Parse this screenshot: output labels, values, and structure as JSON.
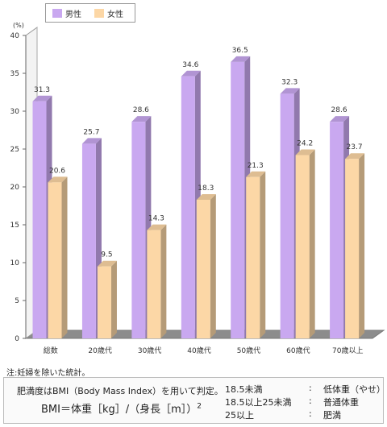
{
  "chart_data": {
    "type": "bar",
    "categories": [
      "総数",
      "20歳代",
      "30歳代",
      "40歳代",
      "50歳代",
      "60歳代",
      "70歳以上"
    ],
    "series": [
      {
        "name": "男性",
        "values": [
          31.3,
          25.7,
          28.6,
          34.6,
          36.5,
          32.3,
          28.6
        ],
        "color": "#c9a8f0"
      },
      {
        "name": "女性",
        "values": [
          20.6,
          9.5,
          14.3,
          18.3,
          21.3,
          24.2,
          23.7
        ],
        "color": "#fcd7a6"
      }
    ],
    "ylim": [
      0,
      40
    ],
    "yticks": [
      0,
      5,
      10,
      15,
      20,
      25,
      30,
      35,
      40
    ],
    "unit_label": "(%)",
    "grid": false,
    "legend_position": "top-left"
  },
  "note": "注:妊婦を除いた統計。",
  "bmi_info": {
    "description": "肥満度はBMI（Body Mass Index）を用いて判定。",
    "formula": "BMI＝体重［kg］/（身長［m］）",
    "formula_exponent": "2",
    "categories": [
      {
        "range": "18.5未満",
        "colon": ":",
        "label": "低体重（やせ）"
      },
      {
        "range": "18.5以上25未満",
        "colon": ":",
        "label": "普通体重"
      },
      {
        "range": "25以上",
        "colon": ":",
        "label": "肥満"
      }
    ]
  }
}
